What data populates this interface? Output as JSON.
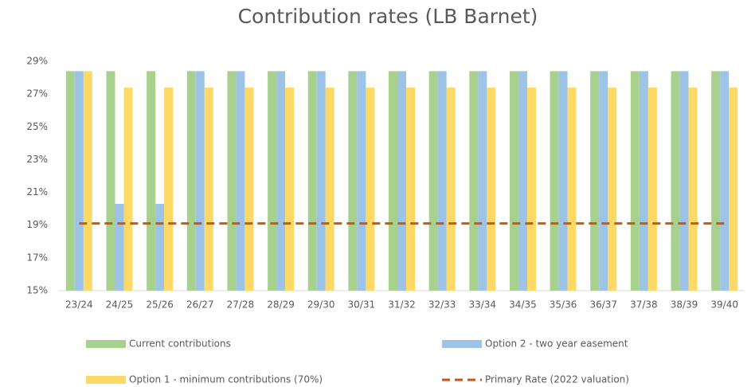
{
  "chart_data": {
    "type": "bar",
    "title": "Contribution rates (LB Barnet)",
    "categories": [
      "23/24",
      "24/25",
      "25/26",
      "26/27",
      "27/28",
      "28/29",
      "29/30",
      "30/31",
      "31/32",
      "32/33",
      "33/34",
      "34/35",
      "35/36",
      "36/37",
      "37/38",
      "38/39",
      "39/40"
    ],
    "series": [
      {
        "name": "Current contributions",
        "color": "#a9d18e",
        "values": [
          28.4,
          28.4,
          28.4,
          28.4,
          28.4,
          28.4,
          28.4,
          28.4,
          28.4,
          28.4,
          28.4,
          28.4,
          28.4,
          28.4,
          28.4,
          28.4,
          28.4
        ]
      },
      {
        "name": "Option 2 - two year easement",
        "color": "#9dc3e6",
        "values": [
          28.4,
          20.3,
          20.3,
          28.4,
          28.4,
          28.4,
          28.4,
          28.4,
          28.4,
          28.4,
          28.4,
          28.4,
          28.4,
          28.4,
          28.4,
          28.4,
          28.4
        ]
      },
      {
        "name": "Option 1 - minimum contributions (70%)",
        "color": "#ffd966",
        "values": [
          28.4,
          27.4,
          27.4,
          27.4,
          27.4,
          27.4,
          27.4,
          27.4,
          27.4,
          27.4,
          27.4,
          27.4,
          27.4,
          27.4,
          27.4,
          27.4,
          27.4
        ]
      },
      {
        "name": "Primary Rate (2022 valuation)",
        "color": "#c55a11",
        "type": "line",
        "values": [
          19.1,
          19.1,
          19.1,
          19.1,
          19.1,
          19.1,
          19.1,
          19.1,
          19.1,
          19.1,
          19.1,
          19.1,
          19.1,
          19.1,
          19.1,
          19.1,
          19.1
        ]
      }
    ],
    "ylim": [
      15,
      29
    ],
    "yticks": [
      {
        "value": 15,
        "label": "15%"
      },
      {
        "value": 17,
        "label": "17%"
      },
      {
        "value": 19,
        "label": "19%"
      },
      {
        "value": 21,
        "label": "21%"
      },
      {
        "value": 23,
        "label": "23%"
      },
      {
        "value": 25,
        "label": "25%"
      },
      {
        "value": 27,
        "label": "27%"
      },
      {
        "value": 29,
        "label": "29%"
      }
    ],
    "grid": false
  }
}
